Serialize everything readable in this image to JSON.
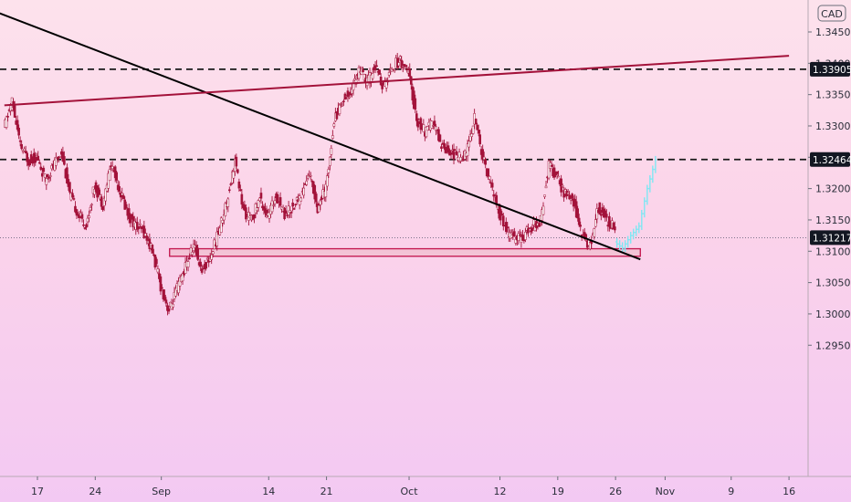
{
  "chart_data": {
    "type": "candlestick",
    "currency_label": "CAD",
    "x_tick_labels": [
      "17",
      "24",
      "Sep",
      "14",
      "21",
      "Oct",
      "12",
      "19",
      "26",
      "Nov",
      "9",
      "16"
    ],
    "y_ticks": [
      1.345,
      1.34,
      1.335,
      1.33,
      1.325,
      1.32,
      1.315,
      1.31,
      1.305,
      1.3,
      1.295
    ],
    "y_tick_labels": [
      "1.34500",
      "1.34000",
      "1.33500",
      "1.33000",
      "1.32500",
      "1.32000",
      "1.31500",
      "1.31000",
      "1.30500",
      "1.30000",
      "1.29500"
    ],
    "ylim": [
      1.2937,
      1.3475
    ],
    "last_price": 1.31217,
    "last_price_label": "1.31217",
    "levels": [
      {
        "name": "resistance-high",
        "value": 1.33905,
        "label": "1.33905",
        "style": "dashed"
      },
      {
        "name": "resistance-mid",
        "value": 1.32464,
        "label": "1.32464",
        "style": "dashed"
      }
    ],
    "support_zone": {
      "from_date": "2020-09-02",
      "to_date": "2020-10-29",
      "low": 1.3092,
      "high": 1.3104
    },
    "trendlines": [
      {
        "name": "descending-trendline",
        "color": "#000000",
        "points": [
          [
            "2020-08-12",
            1.3482
          ],
          [
            "2020-10-29",
            1.3087
          ]
        ]
      },
      {
        "name": "ascending-trendline",
        "color": "#a3123a",
        "points": [
          [
            "2020-08-13",
            1.3333
          ],
          [
            "2020-11-16",
            1.3412
          ]
        ]
      }
    ],
    "price_path": [
      [
        "2020-08-13",
        1.3295
      ],
      [
        "2020-08-14",
        1.334
      ],
      [
        "2020-08-15",
        1.3268
      ],
      [
        "2020-08-16",
        1.3245
      ],
      [
        "2020-08-17",
        1.325
      ],
      [
        "2020-08-18",
        1.3215
      ],
      [
        "2020-08-19",
        1.3235
      ],
      [
        "2020-08-20",
        1.326
      ],
      [
        "2020-08-21",
        1.319
      ],
      [
        "2020-08-22",
        1.316
      ],
      [
        "2020-08-23",
        1.314
      ],
      [
        "2020-08-24",
        1.3205
      ],
      [
        "2020-08-25",
        1.3175
      ],
      [
        "2020-08-26",
        1.324
      ],
      [
        "2020-08-27",
        1.32
      ],
      [
        "2020-08-28",
        1.316
      ],
      [
        "2020-08-29",
        1.314
      ],
      [
        "2020-08-30",
        1.313
      ],
      [
        "2020-08-31",
        1.31
      ],
      [
        "2020-09-01",
        1.3045
      ],
      [
        "2020-09-02",
        1.3005
      ],
      [
        "2020-09-03",
        1.304
      ],
      [
        "2020-09-04",
        1.3075
      ],
      [
        "2020-09-05",
        1.311
      ],
      [
        "2020-09-06",
        1.307
      ],
      [
        "2020-09-07",
        1.309
      ],
      [
        "2020-09-08",
        1.313
      ],
      [
        "2020-09-09",
        1.318
      ],
      [
        "2020-09-10",
        1.3245
      ],
      [
        "2020-09-11",
        1.3165
      ],
      [
        "2020-09-12",
        1.315
      ],
      [
        "2020-09-13",
        1.3185
      ],
      [
        "2020-09-14",
        1.3155
      ],
      [
        "2020-09-15",
        1.319
      ],
      [
        "2020-09-16",
        1.316
      ],
      [
        "2020-09-17",
        1.317
      ],
      [
        "2020-09-18",
        1.319
      ],
      [
        "2020-09-19",
        1.3225
      ],
      [
        "2020-09-20",
        1.317
      ],
      [
        "2020-09-21",
        1.32
      ],
      [
        "2020-09-22",
        1.331
      ],
      [
        "2020-09-23",
        1.334
      ],
      [
        "2020-09-24",
        1.3355
      ],
      [
        "2020-09-25",
        1.339
      ],
      [
        "2020-09-26",
        1.337
      ],
      [
        "2020-09-27",
        1.3395
      ],
      [
        "2020-09-28",
        1.336
      ],
      [
        "2020-09-29",
        1.3395
      ],
      [
        "2020-09-30",
        1.3405
      ],
      [
        "2020-10-01",
        1.3385
      ],
      [
        "2020-10-02",
        1.331
      ],
      [
        "2020-10-03",
        1.329
      ],
      [
        "2020-10-04",
        1.3305
      ],
      [
        "2020-10-05",
        1.327
      ],
      [
        "2020-10-06",
        1.326
      ],
      [
        "2020-10-07",
        1.325
      ],
      [
        "2020-10-08",
        1.3255
      ],
      [
        "2020-10-09",
        1.3315
      ],
      [
        "2020-10-10",
        1.325
      ],
      [
        "2020-10-11",
        1.3205
      ],
      [
        "2020-10-12",
        1.316
      ],
      [
        "2020-10-13",
        1.313
      ],
      [
        "2020-10-14",
        1.312
      ],
      [
        "2020-10-15",
        1.3125
      ],
      [
        "2020-10-16",
        1.314
      ],
      [
        "2020-10-17",
        1.315
      ],
      [
        "2020-10-18",
        1.324
      ],
      [
        "2020-10-19",
        1.3215
      ],
      [
        "2020-10-20",
        1.319
      ],
      [
        "2020-10-21",
        1.318
      ],
      [
        "2020-10-22",
        1.3125
      ],
      [
        "2020-10-23",
        1.311
      ],
      [
        "2020-10-24",
        1.317
      ],
      [
        "2020-10-25",
        1.315
      ],
      [
        "2020-10-26",
        1.314
      ]
    ],
    "projection_path": [
      [
        "2020-10-26",
        1.3115
      ],
      [
        "2020-10-27",
        1.3105
      ],
      [
        "2020-10-28",
        1.3125
      ],
      [
        "2020-10-29",
        1.314
      ],
      [
        "2020-10-30",
        1.32
      ],
      [
        "2020-10-31",
        1.3246
      ]
    ],
    "colors": {
      "bullish": "#ffffff",
      "bearish": "#a3123a",
      "wick": "#a3123a",
      "projection": "#7fe7f3",
      "trendline_black": "#000000",
      "trendline_red": "#a3123a",
      "level_line": "#1a1a1a",
      "badge_bg": "#131722",
      "zone_fill": "#f3c3d6",
      "zone_stroke": "#c2134c"
    },
    "grid": false,
    "legend": "none"
  }
}
